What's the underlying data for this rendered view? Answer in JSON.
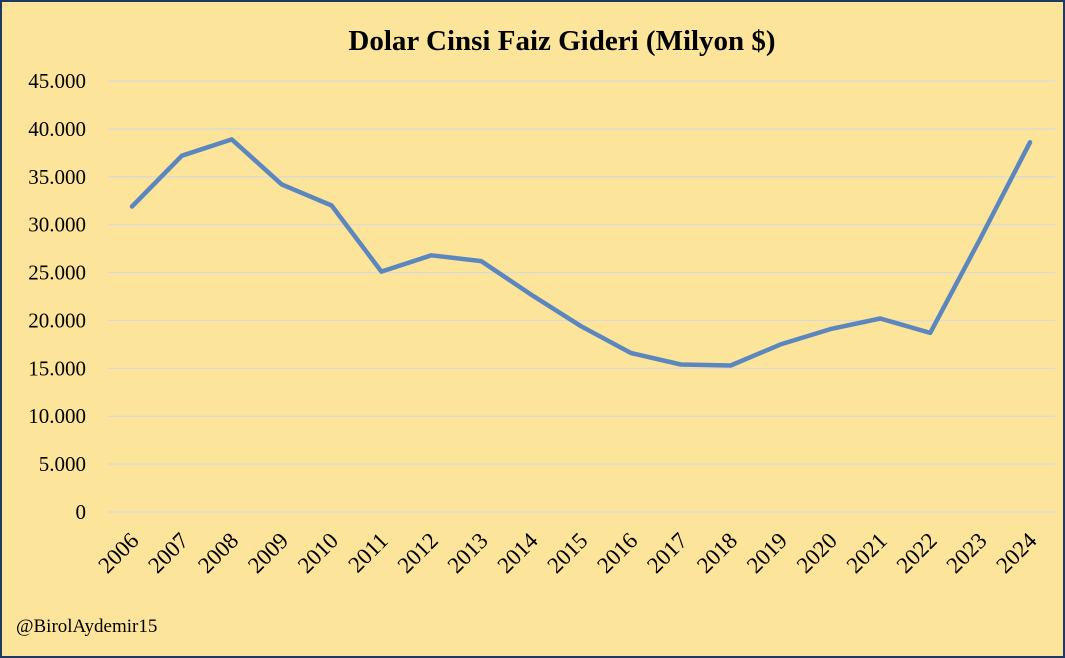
{
  "chart_data": {
    "type": "line",
    "title": "Dolar Cinsi Faiz Gideri (Milyon $)",
    "x": [
      "2006",
      "2007",
      "2008",
      "2009",
      "2010",
      "2011",
      "2012",
      "2013",
      "2014",
      "2015",
      "2016",
      "2017",
      "2018",
      "2019",
      "2020",
      "2021",
      "2022",
      "2023",
      "2024"
    ],
    "series": [
      {
        "values": [
          31900,
          37200,
          38900,
          34200,
          32000,
          25100,
          26800,
          26200,
          22700,
          19400,
          16600,
          15400,
          15300,
          17500,
          19100,
          20200,
          18700,
          28500,
          38600
        ]
      }
    ],
    "ylim": [
      0,
      45000
    ],
    "yticks": [
      0,
      5000,
      10000,
      15000,
      20000,
      25000,
      30000,
      35000,
      40000,
      45000
    ],
    "ytick_labels": [
      "0",
      "5.000",
      "10.000",
      "15.000",
      "20.000",
      "25.000",
      "30.000",
      "35.000",
      "40.000",
      "45.000"
    ],
    "grid": true,
    "line_color": "#5b87be",
    "grid_color": "#d9d9d9",
    "background_color": "#fce49a",
    "border_color": "#1f3864"
  },
  "credit": "@BirolAydemir15"
}
